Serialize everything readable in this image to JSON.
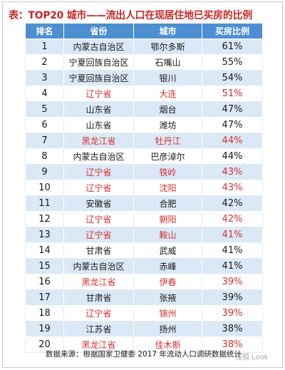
{
  "title": "表：TOP20 城市——流出人口在现居住地已买房的比例",
  "headers": {
    "rank": "排名",
    "province": "省份",
    "city": "城市",
    "ratio": "买房比例"
  },
  "highlight_color": "#d32f2f",
  "header_bg": "#4e8fd1",
  "stripe_bg": "#dbe8f6",
  "rows": [
    {
      "rank": "1",
      "province": "内蒙古自治区",
      "city": "鄂尔多斯",
      "ratio": "61%",
      "highlight": false
    },
    {
      "rank": "2",
      "province": "宁夏回族自治区",
      "city": "石嘴山",
      "ratio": "55%",
      "highlight": false
    },
    {
      "rank": "3",
      "province": "宁夏回族自治区",
      "city": "银川",
      "ratio": "54%",
      "highlight": false
    },
    {
      "rank": "4",
      "province": "辽宁省",
      "city": "大连",
      "ratio": "51%",
      "highlight": true
    },
    {
      "rank": "5",
      "province": "山东省",
      "city": "烟台",
      "ratio": "47%",
      "highlight": false
    },
    {
      "rank": "6",
      "province": "山东省",
      "city": "潍坊",
      "ratio": "47%",
      "highlight": false
    },
    {
      "rank": "7",
      "province": "黑龙江省",
      "city": "牡丹江",
      "ratio": "44%",
      "highlight": true
    },
    {
      "rank": "8",
      "province": "内蒙古自治区",
      "city": "巴彦淖尔",
      "ratio": "44%",
      "highlight": false
    },
    {
      "rank": "9",
      "province": "辽宁省",
      "city": "铁岭",
      "ratio": "43%",
      "highlight": true
    },
    {
      "rank": "10",
      "province": "辽宁省",
      "city": "沈阳",
      "ratio": "43%",
      "highlight": true
    },
    {
      "rank": "11",
      "province": "安徽省",
      "city": "合肥",
      "ratio": "42%",
      "highlight": false
    },
    {
      "rank": "12",
      "province": "辽宁省",
      "city": "朝阳",
      "ratio": "42%",
      "highlight": true
    },
    {
      "rank": "13",
      "province": "辽宁省",
      "city": "鞍山",
      "ratio": "41%",
      "highlight": true
    },
    {
      "rank": "14",
      "province": "甘肃省",
      "city": "武威",
      "ratio": "41%",
      "highlight": false
    },
    {
      "rank": "15",
      "province": "内蒙古自治区",
      "city": "赤峰",
      "ratio": "41%",
      "highlight": false
    },
    {
      "rank": "16",
      "province": "黑龙江省",
      "city": "伊春",
      "ratio": "39%",
      "highlight": true
    },
    {
      "rank": "17",
      "province": "甘肃省",
      "city": "张掖",
      "ratio": "39%",
      "highlight": false
    },
    {
      "rank": "18",
      "province": "辽宁省",
      "city": "锦州",
      "ratio": "39%",
      "highlight": true
    },
    {
      "rank": "19",
      "province": "江苏省",
      "city": "扬州",
      "ratio": "38%",
      "highlight": false
    },
    {
      "rank": "20",
      "province": "黑龙江省",
      "city": "佳木斯",
      "ratio": "38%",
      "highlight": true
    }
  ],
  "source_note": "数据来源：根据国家卫健委 2017 年流动人口调研数据统计",
  "watermark": "搜狐 Look"
}
